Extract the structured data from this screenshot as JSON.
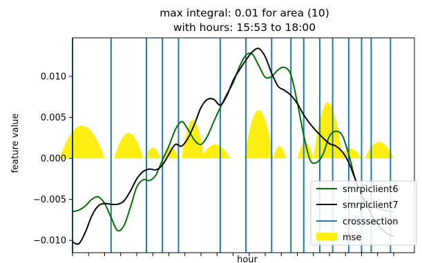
{
  "chart_data": {
    "type": "line",
    "title": "max integral: 0.01 for area (10)",
    "subtitle": "with hours: 15:53 to 18:00",
    "xlabel": "hour",
    "ylabel": "feature value",
    "xlim": [
      0,
      100
    ],
    "ylim": [
      -0.0115,
      0.0147
    ],
    "y_ticks": [
      -0.01,
      -0.005,
      0.0,
      0.005,
      0.01
    ],
    "y_tick_labels": [
      "−0.010",
      "−0.005",
      "0.000",
      "0.005",
      "0.010"
    ],
    "x_minor_ticks": [
      0,
      5,
      10,
      15,
      20,
      25,
      30,
      35,
      40,
      45,
      50,
      55,
      60,
      65,
      70,
      75,
      80,
      85,
      90,
      95,
      100
    ],
    "grid": false,
    "legend_position": "bottom-right",
    "series": [
      {
        "name": "smrpiclient6",
        "color": "#007000",
        "x": [
          0,
          2,
          4,
          6,
          8,
          10,
          12,
          14,
          16,
          18,
          20,
          22,
          24,
          26,
          28,
          30,
          32,
          34,
          36,
          38,
          40,
          42,
          44,
          46,
          48,
          50,
          52,
          54,
          56,
          58,
          60,
          62,
          64,
          66,
          68,
          70,
          72,
          74,
          76,
          78,
          80,
          82,
          84,
          86,
          88,
          90,
          92,
          94,
          96,
          98,
          100
        ],
        "y": [
          -0.0065,
          -0.0063,
          -0.0058,
          -0.005,
          -0.0047,
          -0.0055,
          -0.0072,
          -0.0088,
          -0.0082,
          -0.006,
          -0.0035,
          -0.0026,
          -0.0027,
          -0.002,
          -0.0002,
          0.0015,
          0.0035,
          0.0045,
          0.0035,
          0.0022,
          0.0017,
          0.0027,
          0.0045,
          0.0062,
          0.0078,
          0.0092,
          0.0112,
          0.0126,
          0.0127,
          0.0113,
          0.0099,
          0.01,
          0.0108,
          0.0111,
          0.0102,
          0.0068,
          0.0028,
          -0.0002,
          -0.0005,
          0.0005,
          0.0027,
          0.0033,
          0.0028,
          0.0005,
          -0.0025,
          -0.0045,
          -0.0055,
          -0.006,
          -0.0062,
          -0.0064,
          -0.0065
        ]
      },
      {
        "name": "smrpiclient7",
        "color": "#000000",
        "x": [
          0,
          2,
          4,
          6,
          8,
          10,
          12,
          14,
          16,
          18,
          20,
          22,
          24,
          26,
          28,
          30,
          32,
          34,
          36,
          38,
          40,
          42,
          44,
          46,
          48,
          50,
          52,
          54,
          56,
          58,
          60,
          62,
          64,
          66,
          68,
          70,
          72,
          74,
          76,
          78,
          80,
          82,
          84,
          86,
          88,
          90,
          92,
          94,
          96,
          98,
          100
        ],
        "y": [
          -0.0102,
          -0.0104,
          -0.009,
          -0.007,
          -0.0058,
          -0.0055,
          -0.0056,
          -0.0056,
          -0.0052,
          -0.004,
          -0.0025,
          -0.0016,
          -0.0013,
          -0.0014,
          -0.0008,
          0.0005,
          0.0017,
          0.0015,
          0.0025,
          0.0042,
          0.0062,
          0.0072,
          0.0072,
          0.0065,
          0.0076,
          0.0095,
          0.0108,
          0.012,
          0.013,
          0.0134,
          0.0124,
          0.0104,
          0.0088,
          0.0083,
          0.0077,
          0.0067,
          0.0053,
          0.0042,
          0.0033,
          0.0025,
          0.0018,
          0.0015,
          0.0008,
          -0.0005,
          -0.0025,
          -0.0045,
          -0.006,
          -0.0075,
          -0.0085,
          -0.0092,
          -0.0095
        ]
      }
    ],
    "crosssection": {
      "name": "crosssection",
      "color": "#1f77b4",
      "x": [
        0,
        12,
        23,
        28,
        33,
        46,
        54,
        62,
        68,
        72,
        77,
        81,
        86,
        90,
        93,
        99
      ]
    },
    "mse": {
      "name": "mse",
      "color": "#ffee11",
      "bumps": [
        {
          "center": 3,
          "half_width": 7,
          "peak": 0.004
        },
        {
          "center": 17.5,
          "half_width": 4.5,
          "peak": 0.0031
        },
        {
          "center": 25,
          "half_width": 2.5,
          "peak": 0.0013
        },
        {
          "center": 30.5,
          "half_width": 2.5,
          "peak": 0.0014
        },
        {
          "center": 37.5,
          "half_width": 3.5,
          "peak": 0.0047
        },
        {
          "center": 44.5,
          "half_width": 4.5,
          "peak": 0.0017
        },
        {
          "center": 58,
          "half_width": 4.5,
          "peak": 0.0059
        },
        {
          "center": 64.5,
          "half_width": 2,
          "peak": 0.0015
        },
        {
          "center": 72.5,
          "half_width": 2.5,
          "peak": 0.0019
        },
        {
          "center": 79.5,
          "half_width": 4.5,
          "peak": 0.0068
        },
        {
          "center": 86.5,
          "half_width": 3.5,
          "peak": 0.0012
        },
        {
          "center": 95.5,
          "half_width": 4.5,
          "peak": 0.002
        }
      ]
    },
    "legend": [
      "smrpiclient6",
      "smrpiclient7",
      "crosssection",
      "mse"
    ]
  }
}
